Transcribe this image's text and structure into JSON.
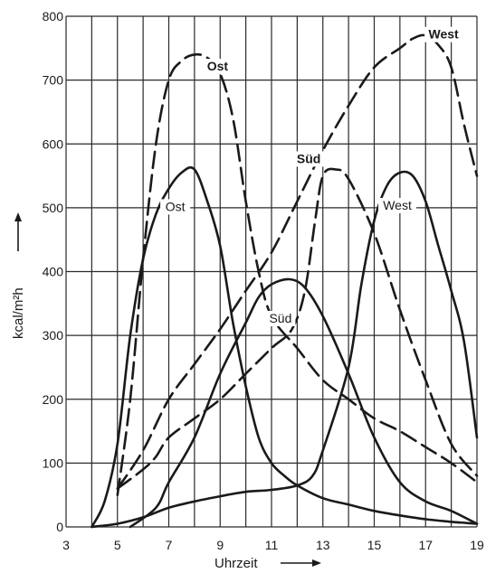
{
  "chart_data": {
    "type": "line",
    "xlabel": "Uhrzeit",
    "ylabel": "kcal/m²h",
    "xlim": [
      3,
      19
    ],
    "ylim": [
      0,
      800
    ],
    "x_ticks": [
      3,
      5,
      7,
      9,
      11,
      13,
      15,
      17,
      19
    ],
    "y_ticks": [
      0,
      100,
      200,
      300,
      400,
      500,
      600,
      700,
      800
    ],
    "grid": true,
    "series": [
      {
        "name": "Ost",
        "style": "dashed",
        "label_bold": true,
        "points": [
          [
            5,
            50
          ],
          [
            5.5,
            200
          ],
          [
            6,
            420
          ],
          [
            6.5,
            600
          ],
          [
            7,
            700
          ],
          [
            7.5,
            730
          ],
          [
            8,
            740
          ],
          [
            8.5,
            735
          ],
          [
            9,
            710
          ],
          [
            9.5,
            640
          ],
          [
            10,
            510
          ],
          [
            10.5,
            400
          ],
          [
            11,
            330
          ],
          [
            12,
            280
          ],
          [
            13,
            230
          ],
          [
            14,
            200
          ],
          [
            15,
            170
          ],
          [
            16,
            150
          ],
          [
            17,
            125
          ],
          [
            18,
            100
          ],
          [
            19,
            70
          ]
        ]
      },
      {
        "name": "Ost",
        "style": "solid",
        "label_bold": false,
        "points": [
          [
            4,
            0
          ],
          [
            4.5,
            40
          ],
          [
            5,
            130
          ],
          [
            5.5,
            300
          ],
          [
            6,
            420
          ],
          [
            6.5,
            490
          ],
          [
            7,
            530
          ],
          [
            7.5,
            555
          ],
          [
            8,
            560
          ],
          [
            8.5,
            510
          ],
          [
            9,
            440
          ],
          [
            9.5,
            320
          ],
          [
            10,
            220
          ],
          [
            10.5,
            140
          ],
          [
            11,
            100
          ],
          [
            11.5,
            80
          ],
          [
            12,
            65
          ],
          [
            13,
            45
          ],
          [
            14,
            35
          ],
          [
            15,
            25
          ],
          [
            16,
            18
          ],
          [
            17,
            12
          ],
          [
            18,
            8
          ],
          [
            19,
            5
          ]
        ]
      },
      {
        "name": "Süd",
        "style": "dashed",
        "label_bold": true,
        "points": [
          [
            5,
            60
          ],
          [
            6,
            90
          ],
          [
            6.5,
            110
          ],
          [
            7,
            140
          ],
          [
            8,
            170
          ],
          [
            9,
            200
          ],
          [
            10,
            240
          ],
          [
            11,
            280
          ],
          [
            11.8,
            310
          ],
          [
            12.3,
            370
          ],
          [
            12.7,
            480
          ],
          [
            13,
            550
          ],
          [
            13.5,
            560
          ],
          [
            14,
            545
          ],
          [
            15,
            460
          ],
          [
            16,
            340
          ],
          [
            17,
            230
          ],
          [
            18,
            130
          ],
          [
            19,
            80
          ]
        ]
      },
      {
        "name": "Süd",
        "style": "solid",
        "label_bold": false,
        "points": [
          [
            5.5,
            0
          ],
          [
            6.5,
            30
          ],
          [
            7,
            70
          ],
          [
            8,
            140
          ],
          [
            9,
            240
          ],
          [
            10,
            320
          ],
          [
            10.5,
            360
          ],
          [
            11,
            380
          ],
          [
            11.7,
            388
          ],
          [
            12.3,
            375
          ],
          [
            13,
            330
          ],
          [
            14,
            240
          ],
          [
            15,
            140
          ],
          [
            16,
            70
          ],
          [
            17,
            40
          ],
          [
            18,
            25
          ],
          [
            19,
            5
          ]
        ]
      },
      {
        "name": "West",
        "style": "dashed",
        "label_bold": true,
        "points": [
          [
            5,
            60
          ],
          [
            6,
            120
          ],
          [
            7,
            200
          ],
          [
            8,
            255
          ],
          [
            9,
            310
          ],
          [
            10,
            370
          ],
          [
            11,
            430
          ],
          [
            12,
            510
          ],
          [
            13,
            590
          ],
          [
            14,
            660
          ],
          [
            15,
            720
          ],
          [
            16,
            750
          ],
          [
            16.5,
            765
          ],
          [
            17,
            770
          ],
          [
            17.5,
            755
          ],
          [
            18,
            720
          ],
          [
            18.5,
            630
          ],
          [
            19,
            550
          ]
        ]
      },
      {
        "name": "West",
        "style": "solid",
        "label_bold": false,
        "points": [
          [
            4,
            0
          ],
          [
            5,
            5
          ],
          [
            6,
            15
          ],
          [
            7,
            30
          ],
          [
            8,
            40
          ],
          [
            9,
            48
          ],
          [
            10,
            55
          ],
          [
            11,
            58
          ],
          [
            12,
            65
          ],
          [
            12.6,
            80
          ],
          [
            13,
            120
          ],
          [
            14,
            250
          ],
          [
            14.5,
            380
          ],
          [
            15,
            480
          ],
          [
            15.5,
            535
          ],
          [
            16,
            555
          ],
          [
            16.5,
            550
          ],
          [
            17,
            510
          ],
          [
            17.5,
            440
          ],
          [
            18,
            370
          ],
          [
            18.5,
            290
          ],
          [
            19,
            140
          ]
        ]
      }
    ],
    "annotations": [
      {
        "text": "Ost",
        "x": 8.9,
        "y": 715,
        "bold": true
      },
      {
        "text": "Ost",
        "x": 7.25,
        "y": 495,
        "bold": false
      },
      {
        "text": "Süd",
        "x": 12.45,
        "y": 570,
        "bold": true
      },
      {
        "text": "Süd",
        "x": 11.35,
        "y": 320,
        "bold": false
      },
      {
        "text": "West",
        "x": 17.7,
        "y": 765,
        "bold": true
      },
      {
        "text": "West",
        "x": 15.9,
        "y": 497,
        "bold": false
      }
    ]
  }
}
